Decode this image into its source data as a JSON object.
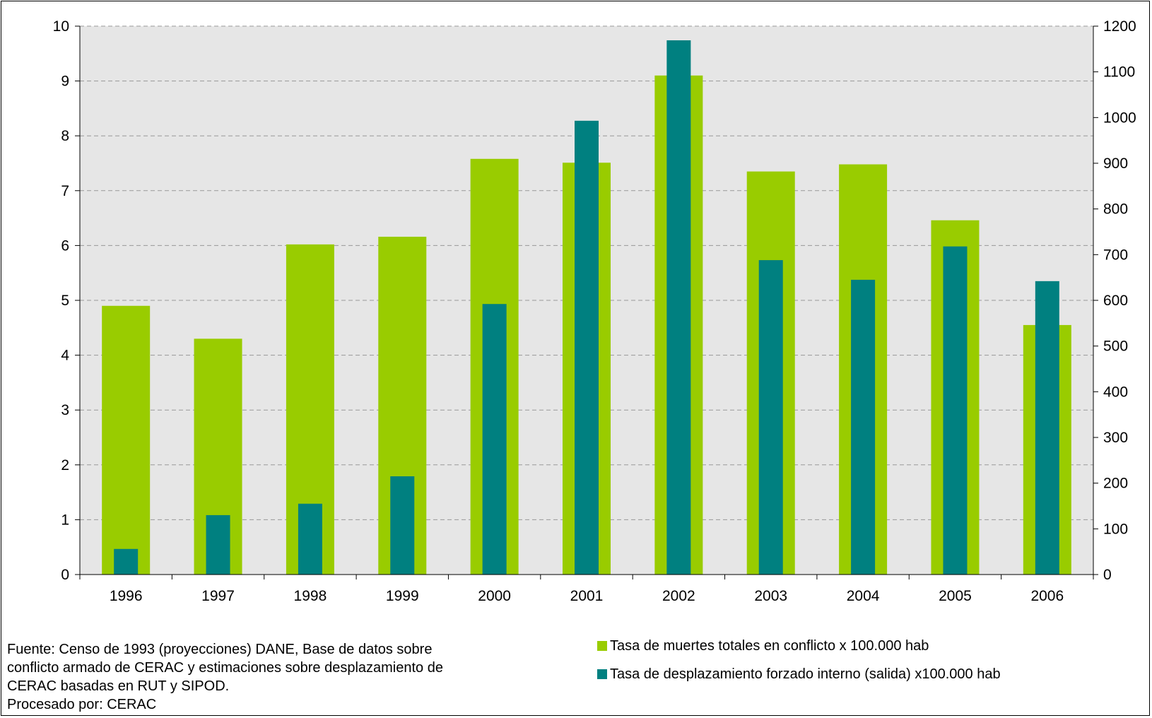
{
  "chart_data": {
    "type": "bar",
    "title": "",
    "xlabel": "",
    "ylabel": "",
    "y2label": "",
    "categories": [
      "1996",
      "1997",
      "1998",
      "1999",
      "2000",
      "2001",
      "2002",
      "2003",
      "2004",
      "2005",
      "2006"
    ],
    "ylim": [
      0,
      10
    ],
    "y2lim": [
      0,
      1200
    ],
    "yticks": [
      "0",
      "1",
      "2",
      "3",
      "4",
      "5",
      "6",
      "7",
      "8",
      "9",
      "10"
    ],
    "y2ticks": [
      "0",
      "100",
      "200",
      "300",
      "400",
      "500",
      "600",
      "700",
      "800",
      "900",
      "1000",
      "1100",
      "1200"
    ],
    "grid": true,
    "legend_position": "bottom-right",
    "series": [
      {
        "name": "Tasa de muertes totales en conflicto x 100.000 hab",
        "axis": "left",
        "color": "#99cc00",
        "values": [
          4.9,
          4.3,
          6.02,
          6.16,
          7.58,
          7.51,
          9.1,
          7.35,
          7.48,
          6.46,
          4.55
        ]
      },
      {
        "name": "Tasa de desplazamiento forzado interno (salida) x100.000 hab",
        "axis": "right",
        "color": "#008080",
        "values": [
          56,
          130,
          155,
          215,
          592,
          993,
          1169,
          688,
          645,
          718,
          642
        ]
      }
    ]
  },
  "colors": {
    "plot_background": "#e6e6e6",
    "gridline": "#999999"
  },
  "footnote": {
    "line1": "Fuente: Censo de 1993 (proyecciones) DANE, Base de datos sobre",
    "line2": "conflicto armado de CERAC y estimaciones sobre desplazamiento de",
    "line3": "CERAC basadas en RUT y SIPOD.",
    "line4": "Procesado por: CERAC"
  }
}
